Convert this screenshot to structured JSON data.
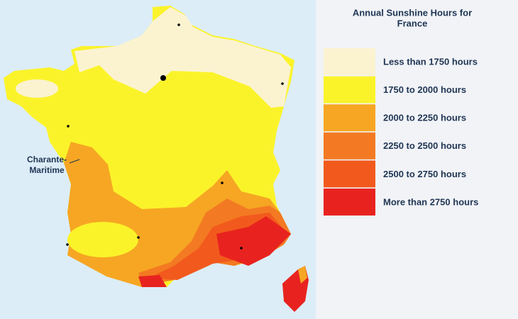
{
  "title": {
    "lines": [
      "Annual Sunshine Hours for",
      "France"
    ]
  },
  "legend": [
    {
      "label": "Less than 1750 hours",
      "color": "#fbf3d0"
    },
    {
      "label": "1750 to 2000 hours",
      "color": "#fbf32a"
    },
    {
      "label": "2000 to 2250 hours",
      "color": "#f6a623"
    },
    {
      "label": "2250 to 2500 hours",
      "color": "#f37a22"
    },
    {
      "label": "2500 to 2750 hours",
      "color": "#f25a1d"
    },
    {
      "label": "More than 2750 hours",
      "color": "#e8231f"
    }
  ],
  "place_label": {
    "lines": [
      "Charante-",
      "Maritime"
    ]
  }
}
